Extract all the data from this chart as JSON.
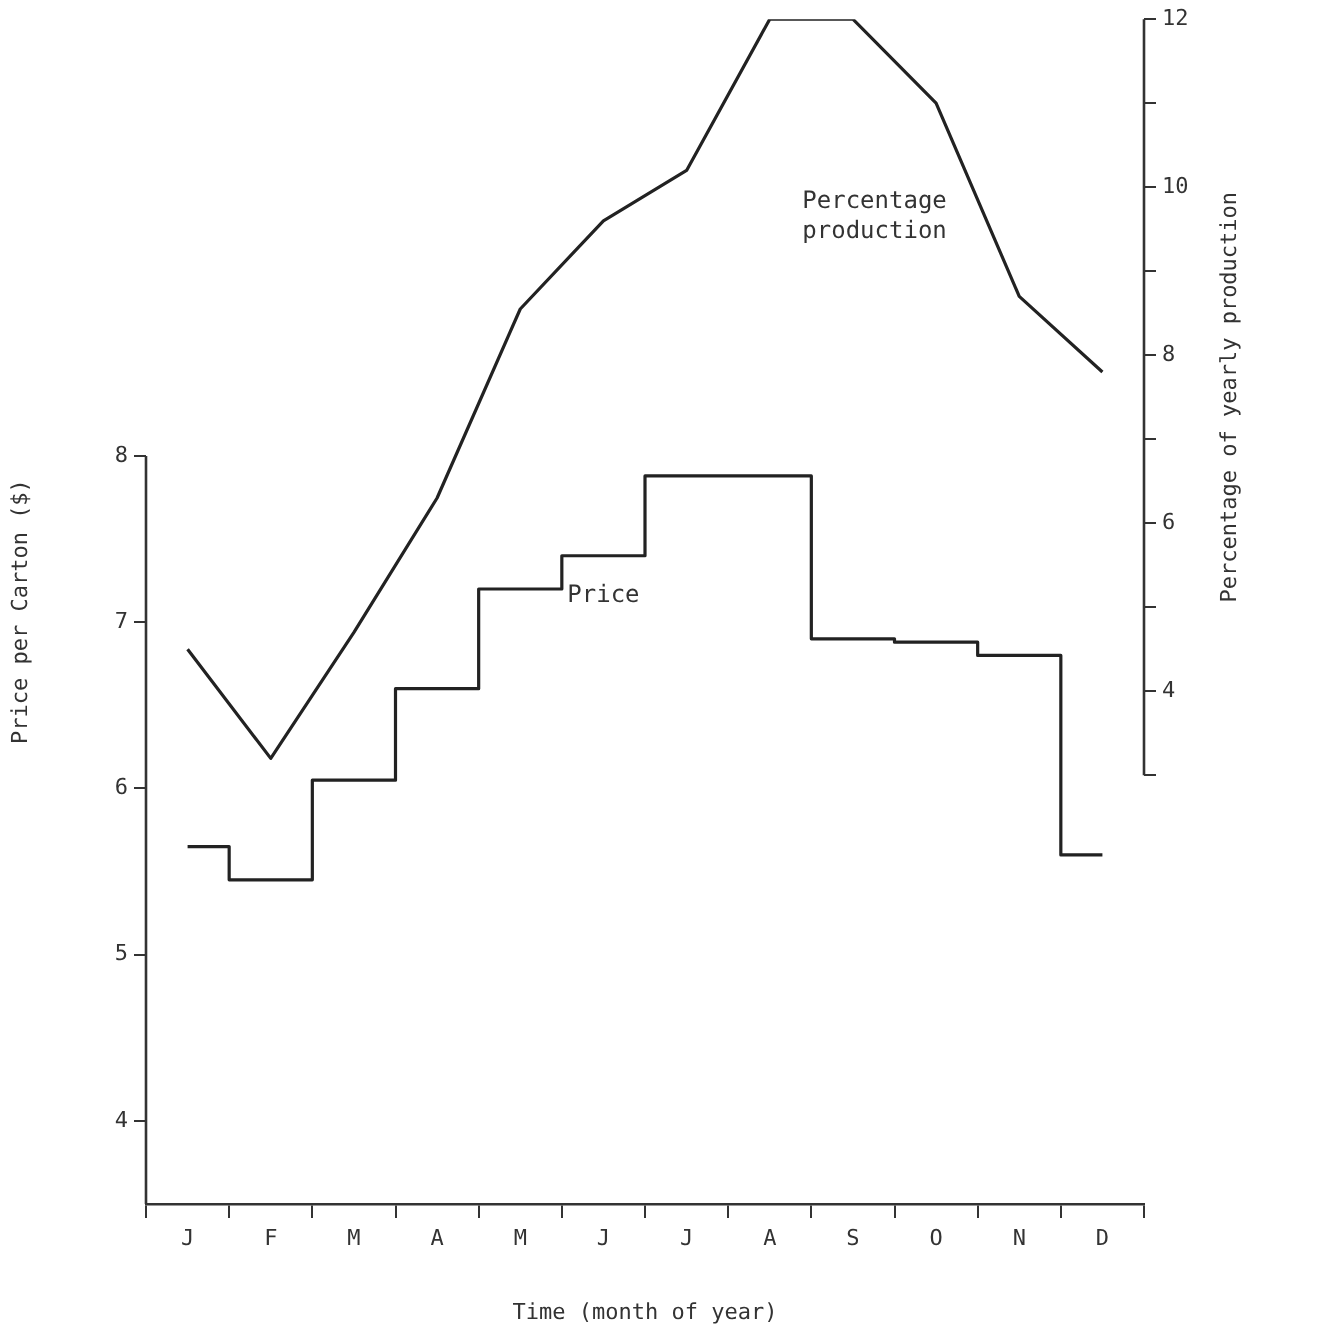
{
  "chart_data": {
    "type": "step",
    "xlabel": "Time (month of year)",
    "ylabel": "Price per Carton ($)",
    "y2label": "Percentage of yearly production",
    "categories": [
      "J",
      "F",
      "M",
      "A",
      "M",
      "J",
      "J",
      "A",
      "S",
      "O",
      "N",
      "D"
    ],
    "ylim": [
      3.5,
      8
    ],
    "yticks": [
      4,
      5,
      6,
      7,
      8
    ],
    "y2lim": [
      3,
      12
    ],
    "y2ticks": [
      {
        "value": 3,
        "label": null
      },
      4,
      {
        "value": 5,
        "label": null
      },
      6,
      {
        "value": 7,
        "label": null
      },
      8,
      {
        "value": 9,
        "label": null
      },
      10,
      {
        "value": 11,
        "label": null
      },
      12
    ],
    "series": [
      {
        "name": "Price",
        "color": "#222222",
        "values": [
          5.65,
          5.45,
          6.05,
          6.6,
          7.2,
          7.4,
          7.88,
          7.88,
          6.9,
          6.88,
          6.8,
          5.6
        ]
      },
      {
        "name": "Percentage production",
        "type": "line",
        "axis": "y2",
        "color": "#222222",
        "values": [
          4.5,
          3.2,
          4.7,
          6.3,
          8.55,
          9.6,
          10.2,
          12,
          12,
          11,
          8.7,
          7.8
        ]
      }
    ],
    "grid": false,
    "legend": false,
    "marker": "none",
    "line_style": "solid"
  }
}
